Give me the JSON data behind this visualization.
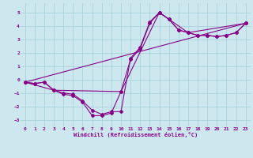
{
  "xlabel": "Windchill (Refroidissement éolien,°C)",
  "background_color": "#cce8ee",
  "grid_color": "#aad4dd",
  "line_color": "#880088",
  "xlim": [
    -0.5,
    23.5
  ],
  "ylim": [
    -3.5,
    5.7
  ],
  "yticks": [
    -3,
    -2,
    -1,
    0,
    1,
    2,
    3,
    4,
    5
  ],
  "xticks": [
    0,
    1,
    2,
    3,
    4,
    5,
    6,
    7,
    8,
    9,
    10,
    11,
    12,
    13,
    14,
    15,
    16,
    17,
    18,
    19,
    20,
    21,
    22,
    23
  ],
  "line1_x": [
    0,
    1,
    2,
    3,
    4,
    5,
    6,
    7,
    8,
    9,
    10,
    11,
    12,
    13,
    14,
    15,
    16,
    17,
    18,
    19,
    20,
    21,
    22,
    23
  ],
  "line1_y": [
    -0.2,
    -0.3,
    -0.2,
    -0.8,
    -1.1,
    -1.2,
    -1.7,
    -2.7,
    -2.7,
    -2.5,
    -0.9,
    1.5,
    2.3,
    4.2,
    5.0,
    4.5,
    3.7,
    3.5,
    3.3,
    3.3,
    3.2,
    3.3,
    3.5,
    4.2
  ],
  "line2_x": [
    0,
    1,
    2,
    3,
    4,
    5,
    6,
    7,
    8,
    9,
    10,
    11,
    12,
    13,
    14,
    15,
    16,
    17,
    18,
    19,
    20,
    21,
    22,
    23
  ],
  "line2_y": [
    -0.2,
    -0.3,
    -0.2,
    -0.8,
    -1.0,
    -1.1,
    -1.6,
    -2.3,
    -2.6,
    -2.4,
    -2.4,
    1.6,
    2.4,
    4.3,
    5.0,
    4.5,
    3.7,
    3.5,
    3.3,
    3.3,
    3.2,
    3.3,
    3.5,
    4.2
  ],
  "line3_x": [
    0,
    3,
    10,
    14,
    17,
    23
  ],
  "line3_y": [
    -0.2,
    -0.8,
    -0.9,
    5.0,
    3.5,
    4.2
  ],
  "line4_x": [
    0,
    23
  ],
  "line4_y": [
    -0.2,
    4.2
  ]
}
